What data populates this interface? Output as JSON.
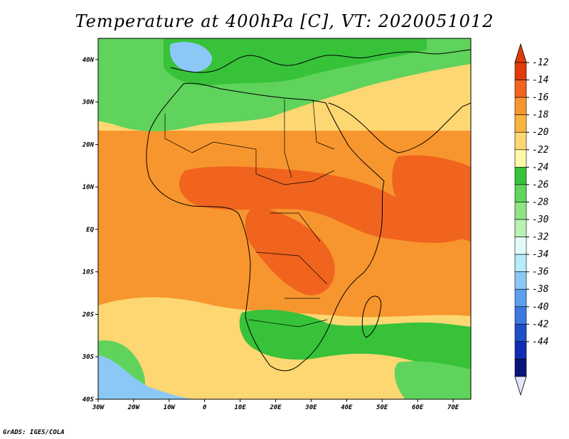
{
  "title": "Temperature at 400hPa [C], VT: 2020051012",
  "credit": "GrADS: IGES/COLA",
  "map": {
    "lon_range": [
      -30,
      75
    ],
    "lat_range": [
      -40,
      45
    ],
    "lon_ticks": [
      {
        "value": -30,
        "label": "30W"
      },
      {
        "value": -20,
        "label": "20W"
      },
      {
        "value": -10,
        "label": "10W"
      },
      {
        "value": 0,
        "label": "0"
      },
      {
        "value": 10,
        "label": "10E"
      },
      {
        "value": 20,
        "label": "20E"
      },
      {
        "value": 30,
        "label": "30E"
      },
      {
        "value": 40,
        "label": "40E"
      },
      {
        "value": 50,
        "label": "50E"
      },
      {
        "value": 60,
        "label": "60E"
      },
      {
        "value": 70,
        "label": "70E"
      }
    ],
    "lat_ticks": [
      {
        "value": 40,
        "label": "40N"
      },
      {
        "value": 30,
        "label": "30N"
      },
      {
        "value": 20,
        "label": "20N"
      },
      {
        "value": 10,
        "label": "10N"
      },
      {
        "value": 0,
        "label": "EQ"
      },
      {
        "value": -10,
        "label": "10S"
      },
      {
        "value": -20,
        "label": "20S"
      },
      {
        "value": -30,
        "label": "30S"
      },
      {
        "value": -40,
        "label": "40S"
      }
    ]
  },
  "colorbar": {
    "levels": [
      -12,
      -14,
      -16,
      -18,
      -20,
      -22,
      -24,
      -26,
      -28,
      -30,
      -32,
      -34,
      -36,
      -38,
      -40,
      -42,
      -44
    ],
    "colors": [
      "#e03c0a",
      "#f0641e",
      "#f7962e",
      "#fbb440",
      "#fcd772",
      "#fef6a8",
      "#37c23a",
      "#5fd35c",
      "#8ee582",
      "#b9f2b2",
      "#e2fbf8",
      "#b4ecfa",
      "#8cc8f5",
      "#5aa0ef",
      "#3c78df",
      "#1e50c8",
      "#0f2db4",
      "#0a1478"
    ],
    "top_arrow_color": "#e03c0a",
    "bottom_arrow_color": "#e4e4fc"
  },
  "colors": {
    "ocean_warm": "#f7962e",
    "land_hot": "#f0641e",
    "north_cool": "#fcd772",
    "north_green": "#5fd35c",
    "south_green": "#37c23a",
    "south_cold": "#8cc8f5",
    "coast": "#000000"
  }
}
